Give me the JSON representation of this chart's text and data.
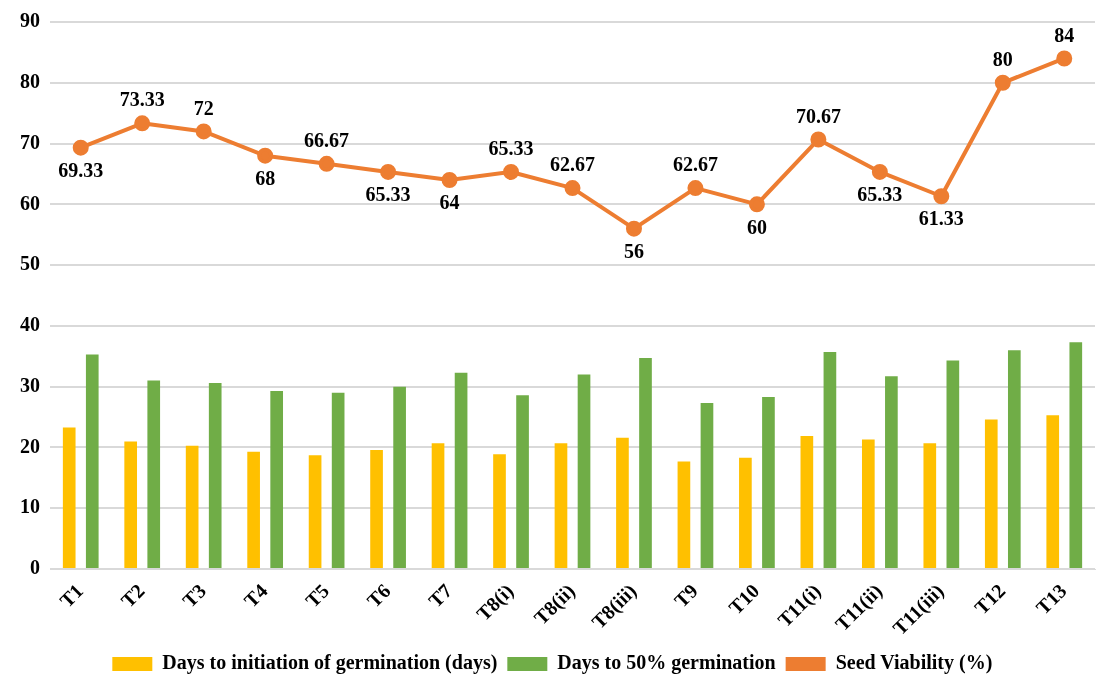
{
  "chart_data": {
    "type": "bar",
    "categories": [
      "T1",
      "T2",
      "T3",
      "T4",
      "T5",
      "T6",
      "T7",
      "T8(i)",
      "T8(ii)",
      "T8(iii)",
      "T9",
      "T10",
      "T11(i)",
      "T11(ii)",
      "T11(iii)",
      "T12",
      "T13"
    ],
    "series": [
      {
        "name": "Days to initiation of germination (days)",
        "color": "#ffc000",
        "values": [
          23.3,
          21.0,
          20.3,
          19.3,
          18.7,
          19.6,
          20.7,
          18.9,
          20.7,
          21.6,
          17.7,
          18.3,
          21.9,
          21.3,
          20.7,
          24.6,
          25.3
        ]
      },
      {
        "name": "Days to 50% germination",
        "color": "#70ad47",
        "values": [
          35.3,
          31.0,
          30.6,
          29.3,
          29.0,
          30.0,
          32.3,
          28.6,
          32.0,
          34.7,
          27.3,
          28.3,
          35.7,
          31.7,
          34.3,
          36.0,
          37.3
        ]
      },
      {
        "name": "Seed Viability (%)",
        "type": "line",
        "color": "#ed7d31",
        "values": [
          69.33,
          73.33,
          72,
          68,
          66.67,
          65.33,
          64,
          65.33,
          62.67,
          56,
          62.67,
          60,
          70.67,
          65.33,
          61.33,
          80,
          84
        ],
        "value_labels": [
          "69.33",
          "73.33",
          "72",
          "68",
          "66.67",
          "65.33",
          "64",
          "65.33",
          "62.67",
          "56",
          "62.67",
          "60",
          "70.67",
          "65.33",
          "61.33",
          "80",
          "84"
        ]
      }
    ],
    "ylim": [
      0,
      90
    ],
    "yticks": [
      0,
      10,
      20,
      30,
      40,
      50,
      60,
      70,
      80,
      90
    ],
    "grid": "y",
    "legend": "bottom",
    "marker": "circle",
    "line_style": "solid"
  }
}
